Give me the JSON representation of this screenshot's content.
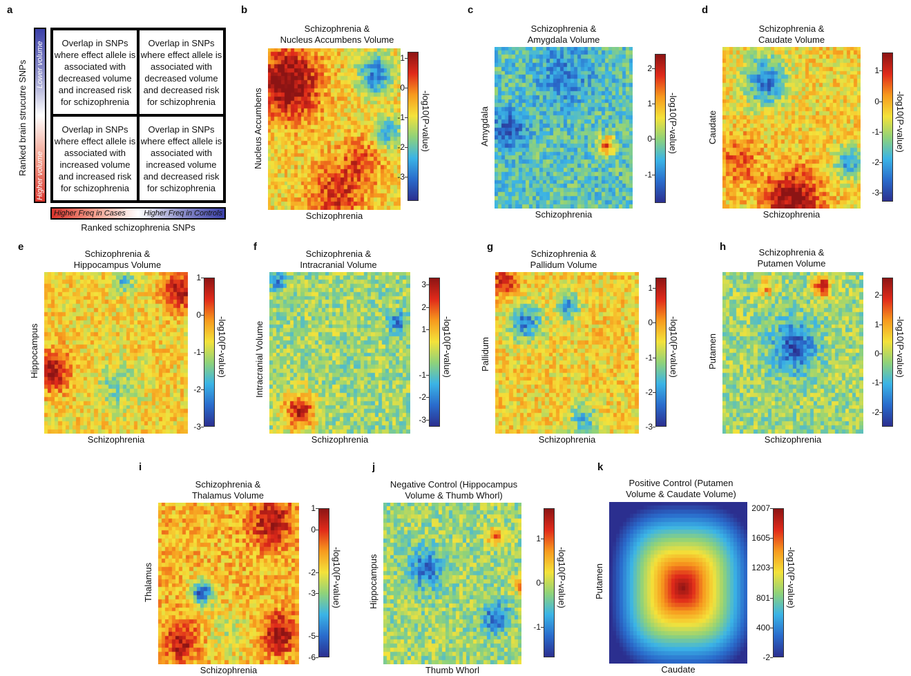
{
  "panel_a": {
    "label": "a",
    "quadrants": [
      "Overlap in SNPs where effect allele is associated with decreased volume and increased risk for schizophrenia",
      "Overlap in SNPs where effect allele is associated with decreased volume and decreased risk for schizophrenia",
      "Overlap in SNPs where effect allele is associated with increased volume and increased risk for schizophrenia",
      "Overlap in SNPs where effect allele is associated with increased volume and decreased risk for schizophrenia"
    ],
    "y_axis_label": "Ranked brain strucutre SNPs",
    "y_bar_top": "Lower volume",
    "y_bar_bottom": "Higher volume",
    "x_bar_left": "Higher Freq in Cases",
    "x_bar_right": "Higher Freq in Controls",
    "x_axis_label": "Ranked schizophrenia SNPs"
  },
  "colorbar_label": "-log10(P-value)",
  "chart_data": [
    {
      "id": "b",
      "type": "heatmap",
      "title_lines": [
        "Schizophrenia &",
        "Nucleus Accumbens Volume"
      ],
      "xlabel": "Schizophrenia",
      "ylabel": "Nucleus Accumbens",
      "ticks": [
        "1",
        "0",
        "-1",
        "-2",
        "-3"
      ],
      "tick_values": [
        1,
        0,
        -1,
        -2,
        -3
      ],
      "clim": [
        -3.8,
        1.2
      ]
    },
    {
      "id": "c",
      "type": "heatmap",
      "title_lines": [
        "Schizophrenia &",
        "Amygdala Volume"
      ],
      "xlabel": "Schizophrenia",
      "ylabel": "Amygdala",
      "ticks": [
        "2",
        "1",
        "0",
        "-1"
      ],
      "tick_values": [
        2,
        1,
        0,
        -1
      ],
      "clim": [
        -1.8,
        2.4
      ]
    },
    {
      "id": "d",
      "type": "heatmap",
      "title_lines": [
        "Schizophrenia &",
        "Caudate Volume"
      ],
      "xlabel": "Schizophrenia",
      "ylabel": "Caudate",
      "ticks": [
        "1",
        "0",
        "-1",
        "-2",
        "-3"
      ],
      "tick_values": [
        1,
        0,
        -1,
        -2,
        -3
      ],
      "clim": [
        -3.3,
        1.6
      ]
    },
    {
      "id": "e",
      "type": "heatmap",
      "title_lines": [
        "Schizophrenia &",
        "Hippocampus Volume"
      ],
      "xlabel": "Schizophrenia",
      "ylabel": "Hippocampus",
      "ticks": [
        "1",
        "0",
        "-1",
        "-2",
        "-3"
      ],
      "tick_values": [
        1,
        0,
        -1,
        -2,
        -3
      ],
      "clim": [
        -3,
        1
      ]
    },
    {
      "id": "f",
      "type": "heatmap",
      "title_lines": [
        "Schizophrenia &",
        "Intracranial Volume"
      ],
      "xlabel": "Schizophrenia",
      "ylabel": "Intracranial Volume",
      "ticks": [
        "3",
        "2",
        "1",
        "-1",
        "-2",
        "-3"
      ],
      "tick_values": [
        3,
        2,
        1,
        -1,
        -2,
        -3
      ],
      "clim": [
        -3.3,
        3.3
      ]
    },
    {
      "id": "g",
      "type": "heatmap",
      "title_lines": [
        "Schizophrenia &",
        "Pallidum Volume"
      ],
      "xlabel": "Schizophrenia",
      "ylabel": "Pallidum",
      "ticks": [
        "1",
        "0",
        "-1",
        "-2",
        "-3"
      ],
      "tick_values": [
        1,
        0,
        -1,
        -2,
        -3
      ],
      "clim": [
        -3,
        1.3
      ]
    },
    {
      "id": "h",
      "type": "heatmap",
      "title_lines": [
        "Schizophrenia &",
        "Putamen Volume"
      ],
      "xlabel": "Schizophrenia",
      "ylabel": "Putamen",
      "ticks": [
        "2",
        "1",
        "0",
        "-1",
        "-2"
      ],
      "tick_values": [
        2,
        1,
        0,
        -1,
        -2
      ],
      "clim": [
        -2.5,
        2.6
      ]
    },
    {
      "id": "i",
      "type": "heatmap",
      "title_lines": [
        "Schizophrenia &",
        "Thalamus Volume"
      ],
      "xlabel": "Schizophrenia",
      "ylabel": "Thalamus",
      "ticks": [
        "1",
        "0",
        "-2",
        "-3",
        "-5",
        "-6"
      ],
      "tick_values": [
        1,
        0,
        -2,
        -3,
        -5,
        -6
      ],
      "clim": [
        -6,
        1
      ]
    },
    {
      "id": "j",
      "type": "heatmap",
      "title_lines": [
        "Negative Control (Hippocampus",
        "Volume & Thumb Whorl)"
      ],
      "xlabel": "Thumb Whorl",
      "ylabel": "Hippocampus",
      "ticks": [
        "1",
        "0",
        "-1"
      ],
      "tick_values": [
        1,
        0,
        -1
      ],
      "clim": [
        -1.7,
        1.7
      ]
    },
    {
      "id": "k",
      "type": "heatmap",
      "title_lines": [
        "Positive Control (Putamen",
        "Volume & Caudate Volume)"
      ],
      "xlabel": "Caudate",
      "ylabel": "Putamen",
      "ticks": [
        "2007",
        "1605",
        "1203",
        "801",
        "400",
        "-2"
      ],
      "tick_values": [
        2007,
        1605,
        1203,
        801,
        400,
        -2
      ],
      "clim": [
        -2,
        2007
      ]
    }
  ]
}
